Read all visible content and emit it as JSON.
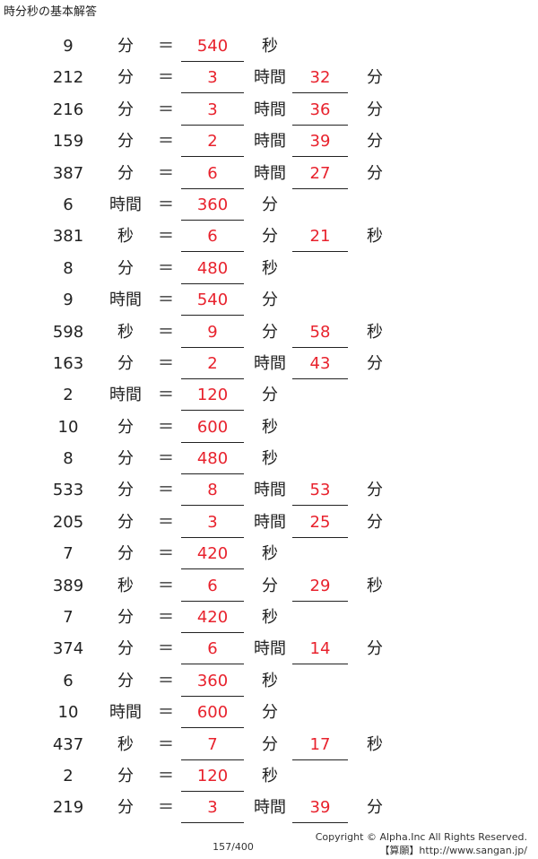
{
  "title": "時分秒の基本解答",
  "rows": [
    {
      "num": "9",
      "unit1": "分",
      "eq": "＝",
      "ans1": "540",
      "unit2": "秒",
      "ans2": "",
      "unit3": ""
    },
    {
      "num": "212",
      "unit1": "分",
      "eq": "＝",
      "ans1": "3",
      "unit2": "時間",
      "ans2": "32",
      "unit3": "分"
    },
    {
      "num": "216",
      "unit1": "分",
      "eq": "＝",
      "ans1": "3",
      "unit2": "時間",
      "ans2": "36",
      "unit3": "分"
    },
    {
      "num": "159",
      "unit1": "分",
      "eq": "＝",
      "ans1": "2",
      "unit2": "時間",
      "ans2": "39",
      "unit3": "分"
    },
    {
      "num": "387",
      "unit1": "分",
      "eq": "＝",
      "ans1": "6",
      "unit2": "時間",
      "ans2": "27",
      "unit3": "分"
    },
    {
      "num": "6",
      "unit1": "時間",
      "eq": "＝",
      "ans1": "360",
      "unit2": "分",
      "ans2": "",
      "unit3": ""
    },
    {
      "num": "381",
      "unit1": "秒",
      "eq": "＝",
      "ans1": "6",
      "unit2": "分",
      "ans2": "21",
      "unit3": "秒"
    },
    {
      "num": "8",
      "unit1": "分",
      "eq": "＝",
      "ans1": "480",
      "unit2": "秒",
      "ans2": "",
      "unit3": ""
    },
    {
      "num": "9",
      "unit1": "時間",
      "eq": "＝",
      "ans1": "540",
      "unit2": "分",
      "ans2": "",
      "unit3": ""
    },
    {
      "num": "598",
      "unit1": "秒",
      "eq": "＝",
      "ans1": "9",
      "unit2": "分",
      "ans2": "58",
      "unit3": "秒"
    },
    {
      "num": "163",
      "unit1": "分",
      "eq": "＝",
      "ans1": "2",
      "unit2": "時間",
      "ans2": "43",
      "unit3": "分"
    },
    {
      "num": "2",
      "unit1": "時間",
      "eq": "＝",
      "ans1": "120",
      "unit2": "分",
      "ans2": "",
      "unit3": ""
    },
    {
      "num": "10",
      "unit1": "分",
      "eq": "＝",
      "ans1": "600",
      "unit2": "秒",
      "ans2": "",
      "unit3": ""
    },
    {
      "num": "8",
      "unit1": "分",
      "eq": "＝",
      "ans1": "480",
      "unit2": "秒",
      "ans2": "",
      "unit3": ""
    },
    {
      "num": "533",
      "unit1": "分",
      "eq": "＝",
      "ans1": "8",
      "unit2": "時間",
      "ans2": "53",
      "unit3": "分"
    },
    {
      "num": "205",
      "unit1": "分",
      "eq": "＝",
      "ans1": "3",
      "unit2": "時間",
      "ans2": "25",
      "unit3": "分"
    },
    {
      "num": "7",
      "unit1": "分",
      "eq": "＝",
      "ans1": "420",
      "unit2": "秒",
      "ans2": "",
      "unit3": ""
    },
    {
      "num": "389",
      "unit1": "秒",
      "eq": "＝",
      "ans1": "6",
      "unit2": "分",
      "ans2": "29",
      "unit3": "秒"
    },
    {
      "num": "7",
      "unit1": "分",
      "eq": "＝",
      "ans1": "420",
      "unit2": "秒",
      "ans2": "",
      "unit3": ""
    },
    {
      "num": "374",
      "unit1": "分",
      "eq": "＝",
      "ans1": "6",
      "unit2": "時間",
      "ans2": "14",
      "unit3": "分"
    },
    {
      "num": "6",
      "unit1": "分",
      "eq": "＝",
      "ans1": "360",
      "unit2": "秒",
      "ans2": "",
      "unit3": ""
    },
    {
      "num": "10",
      "unit1": "時間",
      "eq": "＝",
      "ans1": "600",
      "unit2": "分",
      "ans2": "",
      "unit3": ""
    },
    {
      "num": "437",
      "unit1": "秒",
      "eq": "＝",
      "ans1": "7",
      "unit2": "分",
      "ans2": "17",
      "unit3": "秒"
    },
    {
      "num": "2",
      "unit1": "分",
      "eq": "＝",
      "ans1": "120",
      "unit2": "秒",
      "ans2": "",
      "unit3": ""
    },
    {
      "num": "219",
      "unit1": "分",
      "eq": "＝",
      "ans1": "3",
      "unit2": "時間",
      "ans2": "39",
      "unit3": "分"
    }
  ],
  "footer": {
    "page": "157/400",
    "copyright": "Copyright © Alpha.Inc All Rights Reserved.",
    "site": "【算願】http://www.sangan.jp/"
  },
  "colors": {
    "answer": "#e8222d",
    "text": "#222222"
  }
}
